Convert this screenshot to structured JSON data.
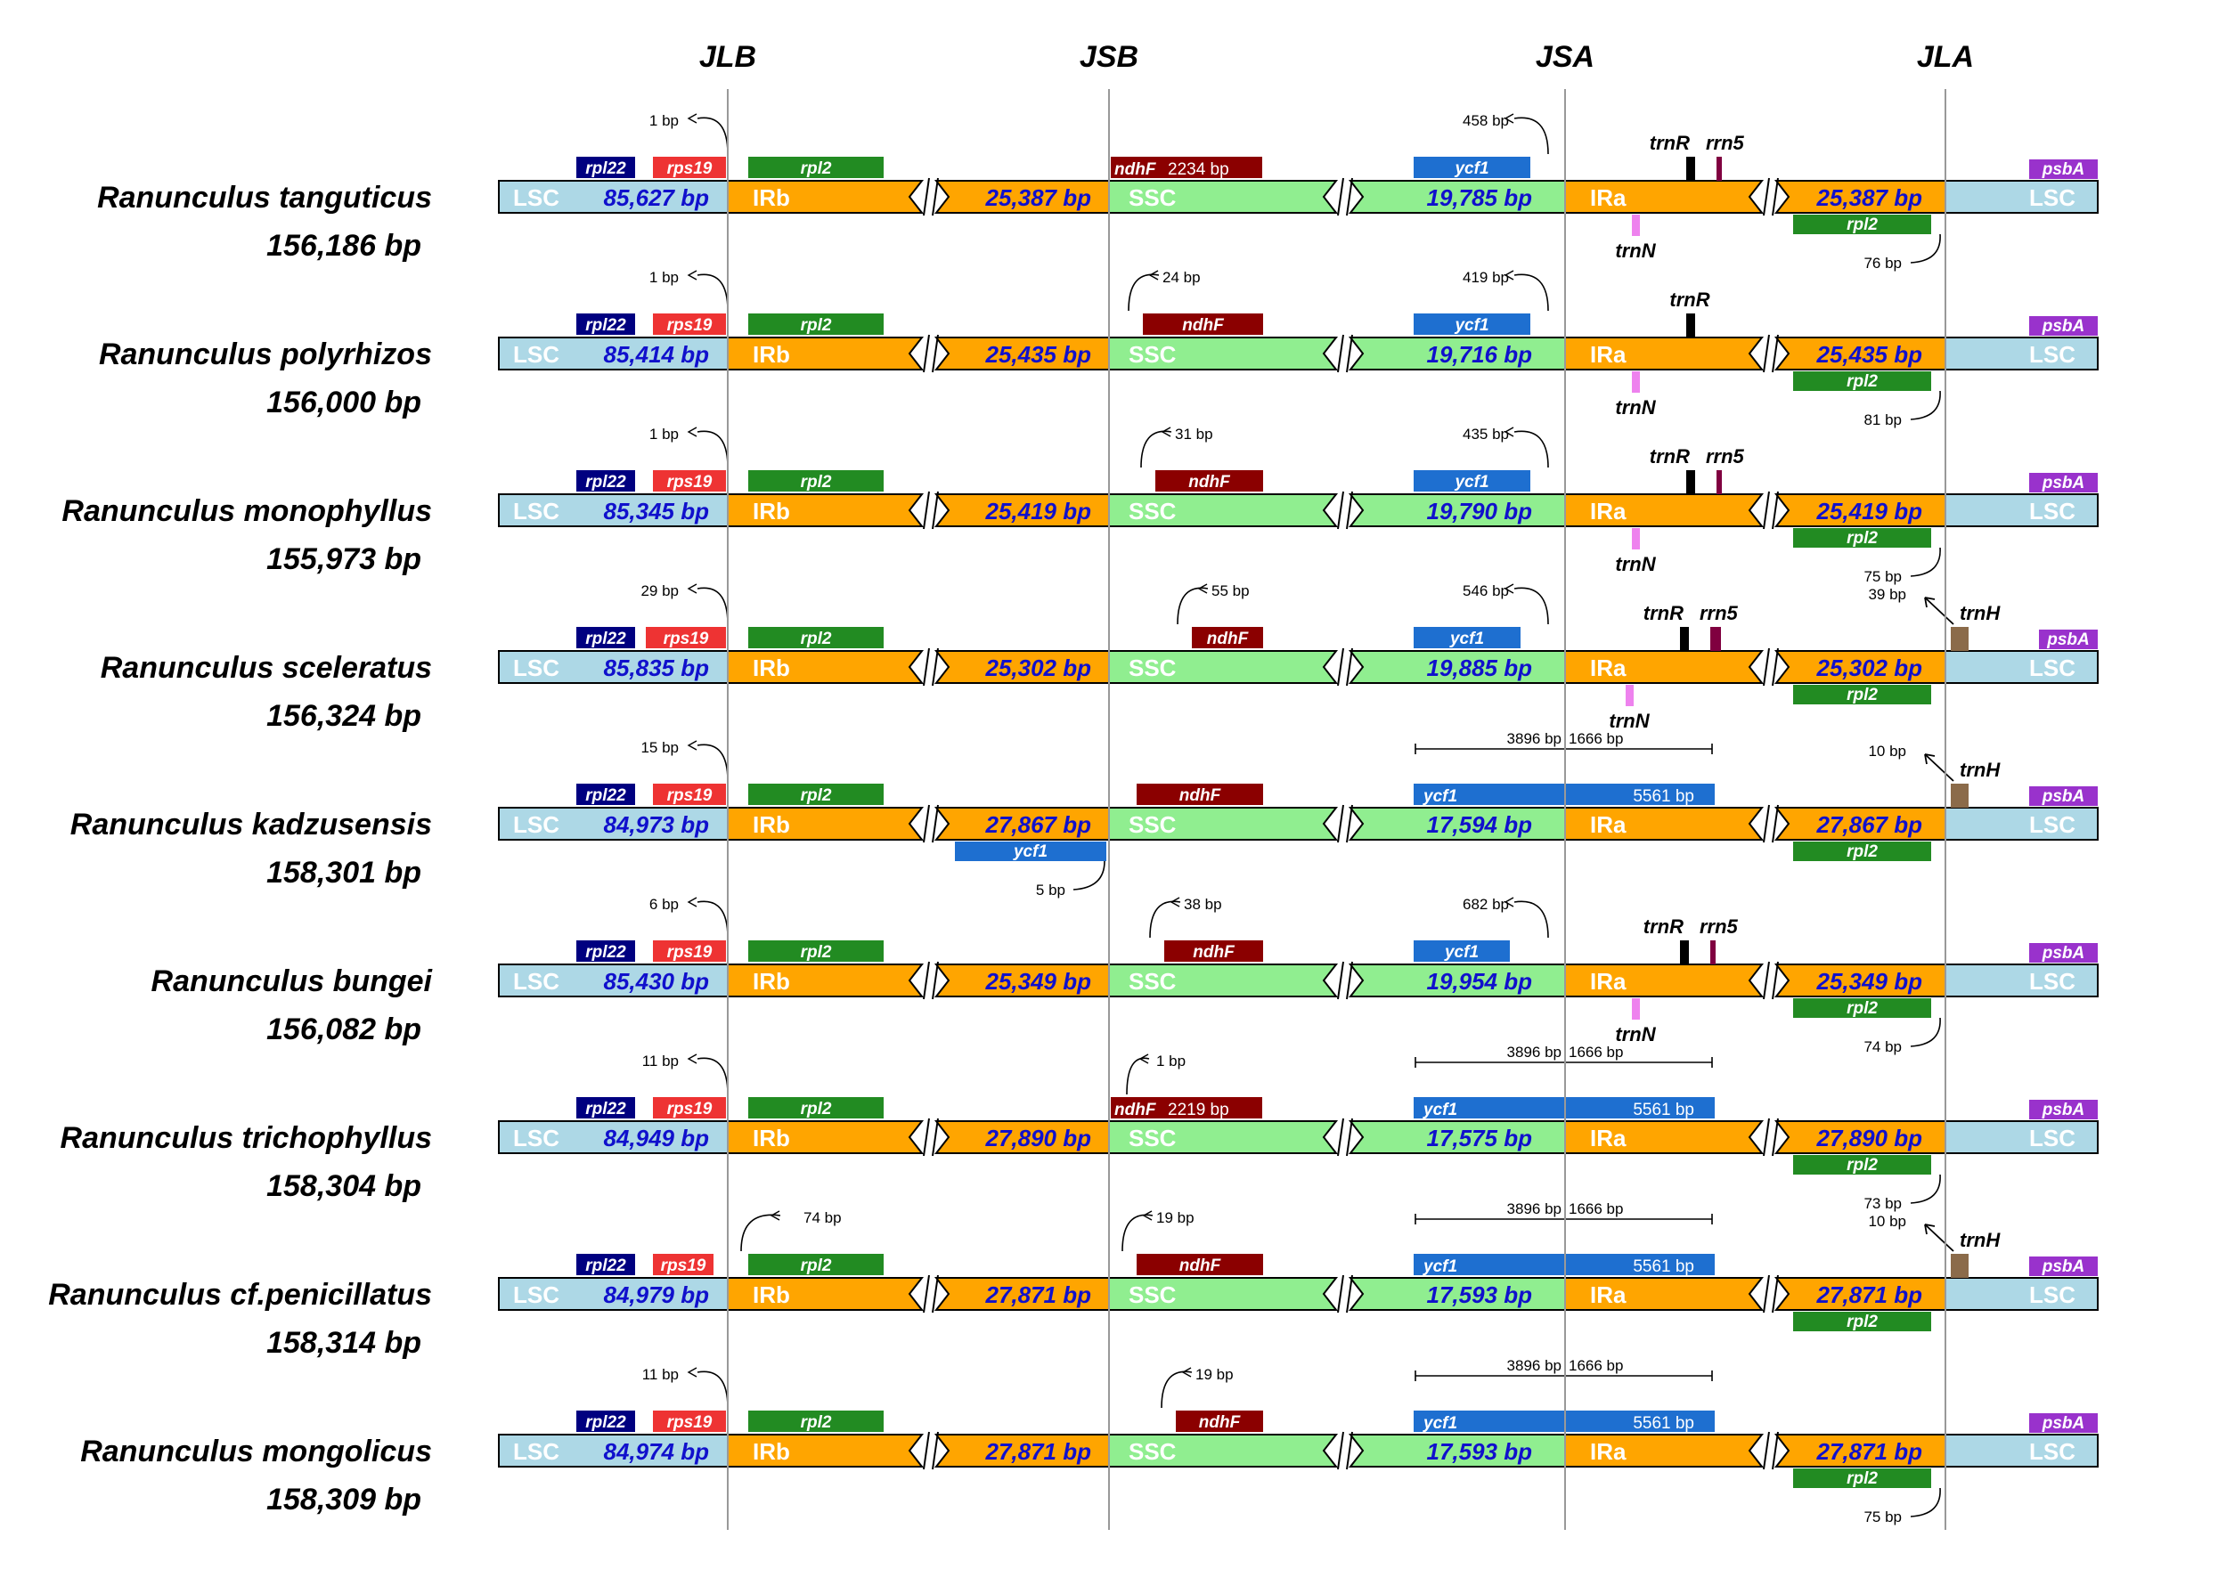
{
  "junctions": [
    "JLB",
    "JSB",
    "JSA",
    "JLA"
  ],
  "colors": {
    "LSC": "#ADD8E6",
    "IR": "#FFA500",
    "SSC": "#90EE90",
    "rpl22": "#000080",
    "rps19": "#EE3333",
    "rpl2": "#228B22",
    "ndhF": "#8B0000",
    "ycf1": "#1E6FD0",
    "psbA": "#9932CC",
    "trnN": "#EE82EE",
    "trnR": "#000000",
    "rrn5": "#800040",
    "trnH": "#8B6B4A",
    "lsc_text": "#1010CC",
    "ir_text": "#1010CC"
  },
  "species": [
    {
      "name": "Ranunculus tanguticus",
      "total": "156,186 bp",
      "lsc": "85,627 bp",
      "irb": "25,387 bp",
      "ssc": "19,785 bp",
      "ira": "25,387 bp",
      "rps19_bp": "1 bp",
      "ndhf_text": "ndhF",
      "ndhf_bp": "2234 bp",
      "ndhf_mode": "span",
      "ycf1_bp": "458 bp",
      "ycf1_mode": "short",
      "rpl2_bp": "76 bp",
      "trnR": true,
      "rrn5": true,
      "trnN": true,
      "trnH": false,
      "trnH_bp": "",
      "psbA": true,
      "ycf1_irb": false,
      "ycf1_irb_bp": "",
      "ycf1_left": "",
      "ycf1_right": "",
      "ycf1_total": ""
    },
    {
      "name": "Ranunculus polyrhizos",
      "total": "156,000 bp",
      "lsc": "85,414 bp",
      "irb": "25,435 bp",
      "ssc": "19,716 bp",
      "ira": "25,435 bp",
      "rps19_bp": "1 bp",
      "ndhf_text": "ndhF",
      "ndhf_bp": "24 bp",
      "ndhf_mode": "gap",
      "ycf1_bp": "419 bp",
      "ycf1_mode": "short",
      "rpl2_bp": "81 bp",
      "trnR": true,
      "rrn5": false,
      "trnN": true,
      "trnH": false,
      "trnH_bp": "",
      "psbA": true,
      "ycf1_irb": false,
      "ycf1_irb_bp": "",
      "ycf1_left": "",
      "ycf1_right": "",
      "ycf1_total": ""
    },
    {
      "name": "Ranunculus monophyllus",
      "total": "155,973 bp",
      "lsc": "85,345 bp",
      "irb": "25,419 bp",
      "ssc": "19,790 bp",
      "ira": "25,419 bp",
      "rps19_bp": "1 bp",
      "ndhf_text": "ndhF",
      "ndhf_bp": "31 bp",
      "ndhf_mode": "gap",
      "ycf1_bp": "435 bp",
      "ycf1_mode": "short",
      "rpl2_bp": "75 bp",
      "trnR": true,
      "rrn5": true,
      "trnN": true,
      "trnH": false,
      "trnH_bp": "",
      "psbA": true,
      "ycf1_irb": false,
      "ycf1_irb_bp": "",
      "ycf1_left": "",
      "ycf1_right": "",
      "ycf1_total": ""
    },
    {
      "name": "Ranunculus sceleratus",
      "total": "156,324 bp",
      "lsc": "85,835 bp",
      "irb": "25,302 bp",
      "ssc": "19,885 bp",
      "ira": "25,302 bp",
      "rps19_bp": "29 bp",
      "ndhf_text": "ndhF",
      "ndhf_bp": "55 bp",
      "ndhf_mode": "gap",
      "ycf1_bp": "546 bp",
      "ycf1_mode": "short",
      "rpl2_bp": "",
      "trnR": true,
      "rrn5": true,
      "trnN": true,
      "trnH": true,
      "trnH_bp": "39 bp",
      "psbA": true,
      "ycf1_irb": false,
      "ycf1_irb_bp": "",
      "ycf1_left": "",
      "ycf1_right": "",
      "ycf1_total": ""
    },
    {
      "name": "Ranunculus kadzusensis",
      "total": "158,301 bp",
      "lsc": "84,973 bp",
      "irb": "27,867 bp",
      "ssc": "17,594 bp",
      "ira": "27,867 bp",
      "rps19_bp": "15 bp",
      "ndhf_text": "ndhF",
      "ndhf_bp": "",
      "ndhf_mode": "plain",
      "ycf1_bp": "",
      "ycf1_mode": "span",
      "rpl2_bp": "",
      "trnR": false,
      "rrn5": false,
      "trnN": false,
      "trnH": true,
      "trnH_bp": "10 bp",
      "psbA": true,
      "ycf1_irb": true,
      "ycf1_irb_bp": "5 bp",
      "ycf1_left": "3896 bp",
      "ycf1_right": "1666 bp",
      "ycf1_total": "5561 bp"
    },
    {
      "name": "Ranunculus bungei",
      "total": "156,082 bp",
      "lsc": "85,430 bp",
      "irb": "25,349 bp",
      "ssc": "19,954 bp",
      "ira": "25,349 bp",
      "rps19_bp": "6 bp",
      "ndhf_text": "ndhF",
      "ndhf_bp": "38 bp",
      "ndhf_mode": "gap",
      "ycf1_bp": "682 bp",
      "ycf1_mode": "short",
      "rpl2_bp": "74 bp",
      "trnR": true,
      "rrn5": true,
      "trnN": true,
      "trnH": false,
      "trnH_bp": "",
      "psbA": true,
      "ycf1_irb": false,
      "ycf1_irb_bp": "",
      "ycf1_left": "",
      "ycf1_right": "",
      "ycf1_total": ""
    },
    {
      "name": "Ranunculus trichophyllus",
      "total": "158,304 bp",
      "lsc": "84,949 bp",
      "irb": "27,890 bp",
      "ssc": "17,575 bp",
      "ira": "27,890 bp",
      "rps19_bp": "11 bp",
      "ndhf_text": "ndhF",
      "ndhf_bp": "2219 bp",
      "ndhf_mode": "span1",
      "ndhf_gap_bp": "1 bp",
      "ycf1_bp": "",
      "ycf1_mode": "span",
      "rpl2_bp": "73 bp",
      "trnR": false,
      "rrn5": false,
      "trnN": false,
      "trnH": false,
      "trnH_bp": "",
      "psbA": true,
      "ycf1_irb": false,
      "ycf1_irb_bp": "",
      "ycf1_left": "3896 bp",
      "ycf1_right": "1666 bp",
      "ycf1_total": "5561 bp"
    },
    {
      "name": "Ranunculus cf.penicillatus",
      "total": "158,314 bp",
      "lsc": "84,979 bp",
      "irb": "27,871 bp",
      "ssc": "17,593 bp",
      "ira": "27,871 bp",
      "rps19_bp": "74 bp",
      "rps19_mode": "gap",
      "ndhf_text": "ndhF",
      "ndhf_bp": "19 bp",
      "ndhf_mode": "gap",
      "ycf1_bp": "",
      "ycf1_mode": "span",
      "rpl2_bp": "",
      "trnR": false,
      "rrn5": false,
      "trnN": false,
      "trnH": true,
      "trnH_bp": "10 bp",
      "psbA": true,
      "ycf1_irb": false,
      "ycf1_irb_bp": "",
      "ycf1_left": "3896 bp",
      "ycf1_right": "1666 bp",
      "ycf1_total": "5561 bp"
    },
    {
      "name": "Ranunculus mongolicus",
      "total": "158,309 bp",
      "lsc": "84,974 bp",
      "irb": "27,871 bp",
      "ssc": "17,593 bp",
      "ira": "27,871 bp",
      "rps19_bp": "11 bp",
      "ndhf_text": "ndhF",
      "ndhf_bp": "19 bp",
      "ndhf_mode": "gap",
      "ycf1_bp": "",
      "ycf1_mode": "span",
      "rpl2_bp": "75 bp",
      "trnR": false,
      "rrn5": false,
      "trnN": false,
      "trnH": false,
      "trnH_bp": "",
      "psbA": true,
      "ycf1_irb": false,
      "ycf1_irb_bp": "",
      "ycf1_left": "3896 bp",
      "ycf1_right": "1666 bp",
      "ycf1_total": "5561 bp"
    }
  ],
  "labels": {
    "LSC": "LSC",
    "IRb": "IRb",
    "SSC": "SSC",
    "IRa": "IRa",
    "rpl22": "rpl22",
    "rps19": "rps19",
    "rpl2": "rpl2",
    "ycf1": "ycf1",
    "psbA": "psbA",
    "trnN": "trnN",
    "trnR": "trnR",
    "rrn5": "rrn5",
    "trnH": "trnH"
  }
}
